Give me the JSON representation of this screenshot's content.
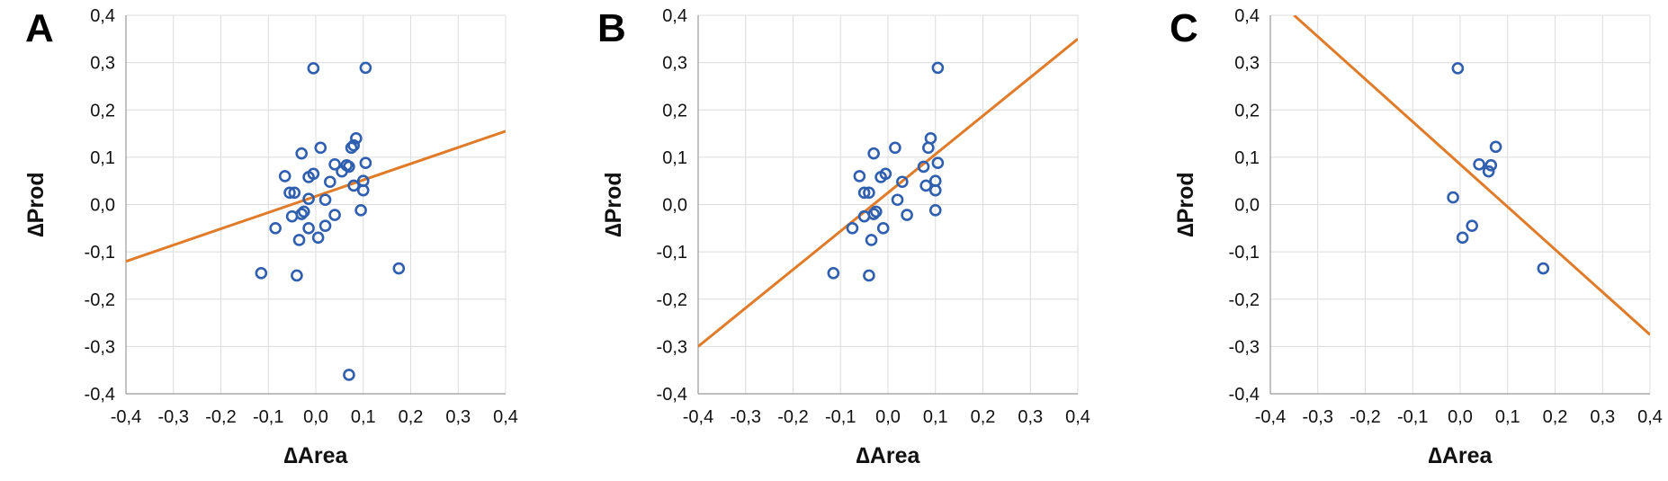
{
  "chart_data": [
    {
      "type": "scatter",
      "panel_label": "A",
      "xlabel": "∆Area",
      "ylabel": "∆Prod",
      "xlim": [
        -0.4,
        0.4
      ],
      "ylim": [
        -0.4,
        0.4
      ],
      "x_ticks": [
        "-0,4",
        "-0,3",
        "-0,2",
        "-0,1",
        "0,0",
        "0,1",
        "0,2",
        "0,3",
        "0,4"
      ],
      "y_ticks": [
        "-0,4",
        "-0,3",
        "-0,2",
        "-0,1",
        "0,0",
        "0,1",
        "0,2",
        "0,3",
        "0,4"
      ],
      "grid": true,
      "marker_color": "#2f5fae",
      "line_color": "#e07b2a",
      "trendline": {
        "x": [
          -0.4,
          0.4
        ],
        "y": [
          -0.12,
          0.155
        ]
      },
      "points": [
        {
          "x": -0.005,
          "y": 0.288
        },
        {
          "x": 0.105,
          "y": 0.289
        },
        {
          "x": 0.085,
          "y": 0.14
        },
        {
          "x": 0.08,
          "y": 0.125
        },
        {
          "x": 0.075,
          "y": 0.12
        },
        {
          "x": 0.01,
          "y": 0.12
        },
        {
          "x": -0.03,
          "y": 0.108
        },
        {
          "x": 0.105,
          "y": 0.088
        },
        {
          "x": 0.04,
          "y": 0.085
        },
        {
          "x": 0.065,
          "y": 0.083
        },
        {
          "x": 0.07,
          "y": 0.08
        },
        {
          "x": 0.055,
          "y": 0.07
        },
        {
          "x": -0.005,
          "y": 0.065
        },
        {
          "x": -0.015,
          "y": 0.058
        },
        {
          "x": -0.065,
          "y": 0.06
        },
        {
          "x": 0.1,
          "y": 0.05
        },
        {
          "x": 0.03,
          "y": 0.048
        },
        {
          "x": 0.08,
          "y": 0.04
        },
        {
          "x": 0.1,
          "y": 0.03
        },
        {
          "x": -0.055,
          "y": 0.025
        },
        {
          "x": -0.045,
          "y": 0.025
        },
        {
          "x": -0.015,
          "y": 0.012
        },
        {
          "x": 0.02,
          "y": 0.01
        },
        {
          "x": 0.095,
          "y": -0.012
        },
        {
          "x": -0.025,
          "y": -0.015
        },
        {
          "x": -0.03,
          "y": -0.02
        },
        {
          "x": 0.04,
          "y": -0.022
        },
        {
          "x": -0.05,
          "y": -0.025
        },
        {
          "x": 0.02,
          "y": -0.045
        },
        {
          "x": -0.015,
          "y": -0.05
        },
        {
          "x": -0.085,
          "y": -0.05
        },
        {
          "x": 0.005,
          "y": -0.07
        },
        {
          "x": -0.035,
          "y": -0.075
        },
        {
          "x": 0.175,
          "y": -0.135
        },
        {
          "x": -0.115,
          "y": -0.145
        },
        {
          "x": -0.04,
          "y": -0.15
        },
        {
          "x": 0.07,
          "y": -0.36
        }
      ]
    },
    {
      "type": "scatter",
      "panel_label": "B",
      "xlabel": "∆Area",
      "ylabel": "∆Prod",
      "xlim": [
        -0.4,
        0.4
      ],
      "ylim": [
        -0.4,
        0.4
      ],
      "x_ticks": [
        "-0,4",
        "-0,3",
        "-0,2",
        "-0,1",
        "0,0",
        "0,1",
        "0,2",
        "0,3",
        "0,4"
      ],
      "y_ticks": [
        "-0,4",
        "-0,3",
        "-0,2",
        "-0,1",
        "0,0",
        "0,1",
        "0,2",
        "0,3",
        "0,4"
      ],
      "grid": true,
      "marker_color": "#2f5fae",
      "line_color": "#e07b2a",
      "trendline": {
        "x": [
          -0.4,
          0.4
        ],
        "y": [
          -0.3,
          0.35
        ]
      },
      "points": [
        {
          "x": 0.105,
          "y": 0.289
        },
        {
          "x": 0.09,
          "y": 0.14
        },
        {
          "x": 0.085,
          "y": 0.12
        },
        {
          "x": 0.015,
          "y": 0.12
        },
        {
          "x": -0.03,
          "y": 0.108
        },
        {
          "x": 0.105,
          "y": 0.088
        },
        {
          "x": 0.075,
          "y": 0.08
        },
        {
          "x": -0.005,
          "y": 0.065
        },
        {
          "x": -0.06,
          "y": 0.06
        },
        {
          "x": -0.015,
          "y": 0.058
        },
        {
          "x": 0.1,
          "y": 0.05
        },
        {
          "x": 0.03,
          "y": 0.048
        },
        {
          "x": 0.08,
          "y": 0.04
        },
        {
          "x": 0.1,
          "y": 0.03
        },
        {
          "x": -0.05,
          "y": 0.025
        },
        {
          "x": -0.04,
          "y": 0.025
        },
        {
          "x": 0.02,
          "y": 0.01
        },
        {
          "x": 0.1,
          "y": -0.012
        },
        {
          "x": -0.025,
          "y": -0.015
        },
        {
          "x": -0.03,
          "y": -0.02
        },
        {
          "x": 0.04,
          "y": -0.022
        },
        {
          "x": -0.05,
          "y": -0.025
        },
        {
          "x": -0.01,
          "y": -0.05
        },
        {
          "x": -0.075,
          "y": -0.05
        },
        {
          "x": -0.035,
          "y": -0.075
        },
        {
          "x": -0.115,
          "y": -0.145
        },
        {
          "x": -0.04,
          "y": -0.15
        }
      ]
    },
    {
      "type": "scatter",
      "panel_label": "C",
      "xlabel": "∆Area",
      "ylabel": "∆Prod",
      "xlim": [
        -0.4,
        0.4
      ],
      "ylim": [
        -0.4,
        0.4
      ],
      "x_ticks": [
        "-0,4",
        "-0,3",
        "-0,2",
        "-0,1",
        "0,0",
        "0,1",
        "0,2",
        "0,3",
        "0,4"
      ],
      "y_ticks": [
        "-0,4",
        "-0,3",
        "-0,2",
        "-0,1",
        "0,0",
        "0,1",
        "0,2",
        "0,3",
        "0,4"
      ],
      "grid": true,
      "marker_color": "#2f5fae",
      "line_color": "#e07b2a",
      "trendline": {
        "x": [
          -0.35,
          0.4
        ],
        "y": [
          0.4,
          -0.275
        ]
      },
      "points": [
        {
          "x": -0.005,
          "y": 0.288
        },
        {
          "x": 0.075,
          "y": 0.122
        },
        {
          "x": 0.04,
          "y": 0.085
        },
        {
          "x": 0.065,
          "y": 0.083
        },
        {
          "x": 0.06,
          "y": 0.07
        },
        {
          "x": -0.015,
          "y": 0.015
        },
        {
          "x": 0.025,
          "y": -0.045
        },
        {
          "x": 0.005,
          "y": -0.07
        },
        {
          "x": 0.175,
          "y": -0.135
        }
      ]
    }
  ]
}
